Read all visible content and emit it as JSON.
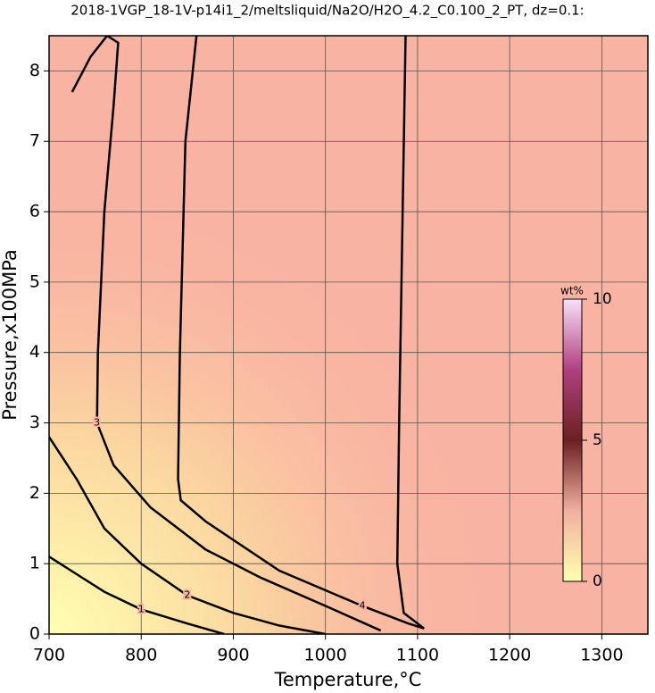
{
  "chart_data": {
    "type": "contour",
    "title": "2018-1VGP_18-1V-p14i1_2/meltsliquid/Na2O/H2O_4.2_C0.100_2_PT, dz=0.1:",
    "x_label": "Temperature,°C",
    "y_label": "Pressure,x100MPa",
    "xlim": [
      700,
      1350
    ],
    "xticks": [
      700,
      800,
      900,
      1000,
      1100,
      1200,
      1300
    ],
    "ylim": [
      0,
      8.5
    ],
    "yticks": [
      0,
      1,
      2,
      3,
      4,
      5,
      6,
      7,
      8
    ],
    "grid": true,
    "contours": [
      {
        "level": 1,
        "x": [
          700,
          730,
          760,
          800,
          850,
          890
        ],
        "y": [
          1.1,
          0.85,
          0.6,
          0.35,
          0.15,
          0
        ]
      },
      {
        "level": 2,
        "x": [
          700,
          730,
          760,
          800,
          850,
          900,
          950,
          1000
        ],
        "y": [
          2.8,
          2.2,
          1.5,
          1.0,
          0.55,
          0.3,
          0.12,
          0
        ]
      },
      {
        "level": 3,
        "x": [
          725,
          745,
          763,
          775,
          770,
          760,
          753,
          752,
          770,
          810,
          870,
          930,
          1000,
          1060
        ],
        "y": [
          7.7,
          8.2,
          8.5,
          8.4,
          7.5,
          6,
          4,
          3,
          2.4,
          1.8,
          1.2,
          0.8,
          0.4,
          0.05
        ]
      },
      {
        "level": 4,
        "x": [
          860,
          848,
          842,
          840,
          843,
          870,
          950,
          1040,
          1090,
          1107,
          1085,
          1078,
          1080,
          1087
        ],
        "y": [
          8.5,
          7,
          4,
          2.2,
          1.9,
          1.6,
          0.9,
          0.4,
          0.15,
          0.08,
          0.3,
          1.0,
          3.0,
          8.5
        ]
      }
    ],
    "colorbar": {
      "label": "wt%",
      "lim": [
        0,
        10
      ],
      "ticks": [
        0,
        5,
        10
      ]
    }
  }
}
